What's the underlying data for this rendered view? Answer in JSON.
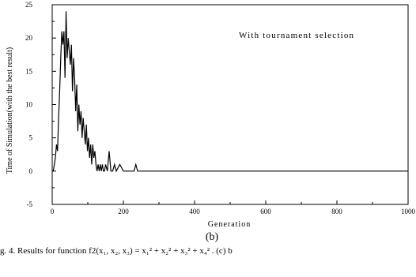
{
  "chart_data": {
    "type": "line",
    "title": "",
    "xlabel": "Generation",
    "ylabel": "Time of Simulation(with the best result)",
    "xlim": [
      0,
      1000
    ],
    "ylim": [
      -5,
      25
    ],
    "xticks": [
      0,
      200,
      400,
      600,
      800,
      1000
    ],
    "yticks": [
      -5,
      0,
      5,
      10,
      15,
      20,
      25
    ],
    "minor_ticks": true,
    "grid": false,
    "legend": "none",
    "annotation": "With tournament selection",
    "series": [
      {
        "x": [
          0,
          3,
          6,
          9,
          12,
          15,
          18,
          21,
          24,
          27,
          30,
          33,
          36,
          39,
          42,
          45,
          48,
          51,
          54,
          57,
          60,
          63,
          66,
          69,
          72,
          75,
          78,
          81,
          84,
          87,
          90,
          93,
          96,
          99,
          102,
          105,
          108,
          111,
          114,
          117,
          120,
          123,
          126,
          129,
          132,
          135,
          138,
          141,
          144,
          147,
          150,
          155,
          160,
          165,
          170,
          175,
          180,
          190,
          200,
          210,
          220,
          230,
          235,
          240,
          260,
          300,
          400,
          600,
          800,
          1000
        ],
        "y": [
          0,
          0,
          1,
          2,
          4,
          3,
          8,
          12,
          17,
          21,
          19,
          21,
          14,
          24,
          17,
          20,
          18,
          16,
          19,
          12,
          17,
          14,
          9,
          13,
          6,
          10,
          7,
          9,
          5,
          8,
          6,
          4,
          7,
          3,
          5,
          2,
          4,
          1,
          4,
          2,
          3,
          1,
          0,
          1,
          0,
          1,
          0,
          1,
          0,
          0,
          1,
          0,
          3,
          0,
          0,
          1,
          0,
          1,
          0,
          0,
          0,
          0,
          1,
          0,
          0,
          0,
          0,
          0,
          0,
          0
        ]
      }
    ]
  },
  "footer": {
    "panel_label": "(b)",
    "caption": "ig. 4. Results for function f2(x₁, x₂, x₃) = x₁² + x₂² + x₃² + x₄² . (c) b"
  }
}
